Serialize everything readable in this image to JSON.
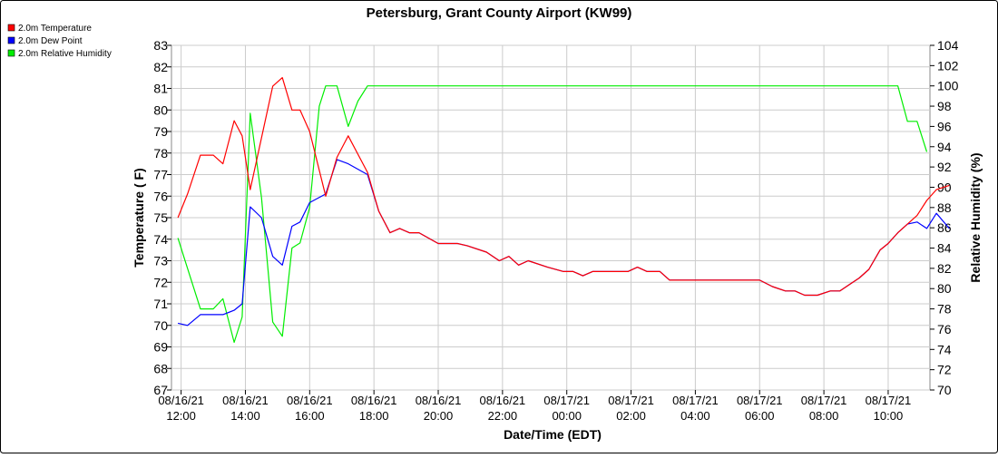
{
  "chart_data": {
    "type": "line",
    "title": "Petersburg, Grant County Airport (KW99)",
    "xlabel": "Date/Time (EDT)",
    "ylabel_left": "Temperature ( F)",
    "ylabel_right": "Relative Humidity (%)",
    "ylim_left": [
      67,
      83
    ],
    "ylim_right": [
      70,
      104
    ],
    "grid": true,
    "legend_position": "top-left",
    "x_range_hours": [
      11.7,
      35.3
    ],
    "x_ticks": [
      {
        "hour": 12,
        "date": "08/16/21",
        "time": "12:00"
      },
      {
        "hour": 14,
        "date": "08/16/21",
        "time": "14:00"
      },
      {
        "hour": 16,
        "date": "08/16/21",
        "time": "16:00"
      },
      {
        "hour": 18,
        "date": "08/16/21",
        "time": "18:00"
      },
      {
        "hour": 20,
        "date": "08/16/21",
        "time": "20:00"
      },
      {
        "hour": 22,
        "date": "08/16/21",
        "time": "22:00"
      },
      {
        "hour": 24,
        "date": "08/17/21",
        "time": "00:00"
      },
      {
        "hour": 26,
        "date": "08/17/21",
        "time": "02:00"
      },
      {
        "hour": 28,
        "date": "08/17/21",
        "time": "04:00"
      },
      {
        "hour": 30,
        "date": "08/17/21",
        "time": "06:00"
      },
      {
        "hour": 32,
        "date": "08/17/21",
        "time": "08:00"
      },
      {
        "hour": 34,
        "date": "08/17/21",
        "time": "10:00"
      }
    ],
    "y_ticks_left": [
      67,
      68,
      69,
      70,
      71,
      72,
      73,
      74,
      75,
      76,
      77,
      78,
      79,
      80,
      81,
      82,
      83
    ],
    "y_ticks_right": [
      70,
      72,
      74,
      76,
      78,
      80,
      82,
      84,
      86,
      88,
      90,
      92,
      94,
      96,
      98,
      100,
      102,
      104
    ],
    "series": [
      {
        "name": "2.0m Temperature",
        "axis": "left",
        "color": "#ff0000",
        "points": [
          [
            11.9,
            75.0
          ],
          [
            12.2,
            76.1
          ],
          [
            12.6,
            77.9
          ],
          [
            13.0,
            77.9
          ],
          [
            13.3,
            77.5
          ],
          [
            13.65,
            79.5
          ],
          [
            13.9,
            78.8
          ],
          [
            14.15,
            76.3
          ],
          [
            14.5,
            78.7
          ],
          [
            14.85,
            81.1
          ],
          [
            15.15,
            81.5
          ],
          [
            15.45,
            80.0
          ],
          [
            15.7,
            80.0
          ],
          [
            16.0,
            79.0
          ],
          [
            16.5,
            76.0
          ],
          [
            16.85,
            77.8
          ],
          [
            17.2,
            78.8
          ],
          [
            17.8,
            77.1
          ],
          [
            18.15,
            75.3
          ],
          [
            18.5,
            74.3
          ],
          [
            18.8,
            74.5
          ],
          [
            19.1,
            74.3
          ],
          [
            19.4,
            74.3
          ],
          [
            20.0,
            73.8
          ],
          [
            20.6,
            73.8
          ],
          [
            20.9,
            73.7
          ],
          [
            21.5,
            73.4
          ],
          [
            21.9,
            73.0
          ],
          [
            22.2,
            73.2
          ],
          [
            22.5,
            72.8
          ],
          [
            22.8,
            73.0
          ],
          [
            23.4,
            72.7
          ],
          [
            23.9,
            72.5
          ],
          [
            24.2,
            72.5
          ],
          [
            24.5,
            72.3
          ],
          [
            24.8,
            72.5
          ],
          [
            25.4,
            72.5
          ],
          [
            25.9,
            72.5
          ],
          [
            26.2,
            72.7
          ],
          [
            26.5,
            72.5
          ],
          [
            26.9,
            72.5
          ],
          [
            27.2,
            72.1
          ],
          [
            27.5,
            72.1
          ],
          [
            30.0,
            72.1
          ],
          [
            30.4,
            71.8
          ],
          [
            30.8,
            71.6
          ],
          [
            31.1,
            71.6
          ],
          [
            31.4,
            71.4
          ],
          [
            31.8,
            71.4
          ],
          [
            32.2,
            71.6
          ],
          [
            32.5,
            71.6
          ],
          [
            32.8,
            71.9
          ],
          [
            33.1,
            72.2
          ],
          [
            33.4,
            72.6
          ],
          [
            33.75,
            73.5
          ],
          [
            34.0,
            73.8
          ],
          [
            34.3,
            74.3
          ],
          [
            34.6,
            74.7
          ],
          [
            34.9,
            75.1
          ],
          [
            35.2,
            75.8
          ],
          [
            35.5,
            76.3
          ],
          [
            35.9,
            76.5
          ]
        ]
      },
      {
        "name": "2.0m Dew Point",
        "axis": "left",
        "color": "#0000ff",
        "points": [
          [
            11.9,
            70.1
          ],
          [
            12.2,
            70.0
          ],
          [
            12.6,
            70.5
          ],
          [
            13.0,
            70.5
          ],
          [
            13.3,
            70.5
          ],
          [
            13.65,
            70.7
          ],
          [
            13.9,
            71.0
          ],
          [
            14.15,
            75.5
          ],
          [
            14.5,
            75.0
          ],
          [
            14.85,
            73.2
          ],
          [
            15.15,
            72.8
          ],
          [
            15.45,
            74.6
          ],
          [
            15.7,
            74.8
          ],
          [
            16.0,
            75.7
          ],
          [
            16.5,
            76.1
          ],
          [
            16.85,
            77.7
          ],
          [
            17.2,
            77.5
          ],
          [
            17.8,
            77.0
          ],
          [
            18.15,
            75.3
          ],
          [
            18.5,
            74.3
          ],
          [
            18.8,
            74.5
          ],
          [
            19.1,
            74.3
          ],
          [
            19.4,
            74.3
          ],
          [
            20.0,
            73.8
          ],
          [
            20.6,
            73.8
          ],
          [
            20.9,
            73.7
          ],
          [
            21.5,
            73.4
          ],
          [
            21.9,
            73.0
          ],
          [
            22.2,
            73.2
          ],
          [
            22.5,
            72.8
          ],
          [
            22.8,
            73.0
          ],
          [
            23.4,
            72.7
          ],
          [
            23.9,
            72.5
          ],
          [
            24.2,
            72.5
          ],
          [
            24.5,
            72.3
          ],
          [
            24.8,
            72.5
          ],
          [
            25.4,
            72.5
          ],
          [
            25.9,
            72.5
          ],
          [
            26.2,
            72.7
          ],
          [
            26.5,
            72.5
          ],
          [
            26.9,
            72.5
          ],
          [
            27.2,
            72.1
          ],
          [
            27.5,
            72.1
          ],
          [
            30.0,
            72.1
          ],
          [
            30.4,
            71.8
          ],
          [
            30.8,
            71.6
          ],
          [
            31.1,
            71.6
          ],
          [
            31.4,
            71.4
          ],
          [
            31.8,
            71.4
          ],
          [
            32.2,
            71.6
          ],
          [
            32.5,
            71.6
          ],
          [
            32.8,
            71.9
          ],
          [
            33.1,
            72.2
          ],
          [
            33.4,
            72.6
          ],
          [
            33.75,
            73.5
          ],
          [
            34.0,
            73.8
          ],
          [
            34.3,
            74.3
          ],
          [
            34.6,
            74.7
          ],
          [
            34.9,
            74.8
          ],
          [
            35.2,
            74.5
          ],
          [
            35.5,
            75.2
          ],
          [
            35.9,
            74.5
          ]
        ]
      },
      {
        "name": "2.0m Relative Humidity",
        "axis": "right",
        "color": "#00ee00",
        "points": [
          [
            11.9,
            85.0
          ],
          [
            12.2,
            82.0
          ],
          [
            12.6,
            78.0
          ],
          [
            13.0,
            78.0
          ],
          [
            13.3,
            79.0
          ],
          [
            13.65,
            74.7
          ],
          [
            13.9,
            77.2
          ],
          [
            14.15,
            97.3
          ],
          [
            14.5,
            89.0
          ],
          [
            14.85,
            76.7
          ],
          [
            15.15,
            75.3
          ],
          [
            15.45,
            84.0
          ],
          [
            15.7,
            84.5
          ],
          [
            16.0,
            88.0
          ],
          [
            16.3,
            98.0
          ],
          [
            16.5,
            100.0
          ],
          [
            16.85,
            100.0
          ],
          [
            17.2,
            96.0
          ],
          [
            17.5,
            98.5
          ],
          [
            17.8,
            100.0
          ],
          [
            34.0,
            100.0
          ],
          [
            34.3,
            100.0
          ],
          [
            34.6,
            96.5
          ],
          [
            34.9,
            96.5
          ],
          [
            35.2,
            93.5
          ]
        ]
      }
    ]
  }
}
